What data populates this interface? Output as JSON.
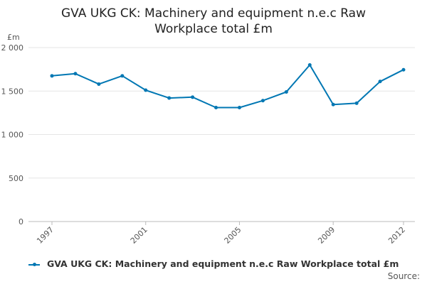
{
  "chart_data": {
    "type": "line",
    "title_line1": "GVA UKG CK: Machinery and equipment n.e.c Raw",
    "title_line2": "Workplace total £m",
    "ylabel": "£m",
    "xlabel": "",
    "ylim": [
      0,
      2000
    ],
    "yticks": [
      0,
      500,
      1000,
      1500,
      2000
    ],
    "ytick_labels": [
      "0",
      "500",
      "1 000",
      "1 500",
      "2 000"
    ],
    "xticks": [
      "1997",
      "2001",
      "2005",
      "2009",
      "2012"
    ],
    "grid": true,
    "legend_position": "bottom",
    "series": [
      {
        "name": "GVA UKG CK: Machinery and equipment n.e.c Raw Workplace total £m",
        "color": "#0077b3",
        "x": [
          1997,
          1998,
          1999,
          2000,
          2001,
          2002,
          2003,
          2004,
          2005,
          2006,
          2007,
          2008,
          2009,
          2010,
          2011,
          2012
        ],
        "values": [
          1675,
          1700,
          1580,
          1675,
          1510,
          1420,
          1430,
          1310,
          1310,
          1390,
          1490,
          1800,
          1345,
          1360,
          1610,
          1745
        ]
      }
    ]
  },
  "source_label": "Source:"
}
